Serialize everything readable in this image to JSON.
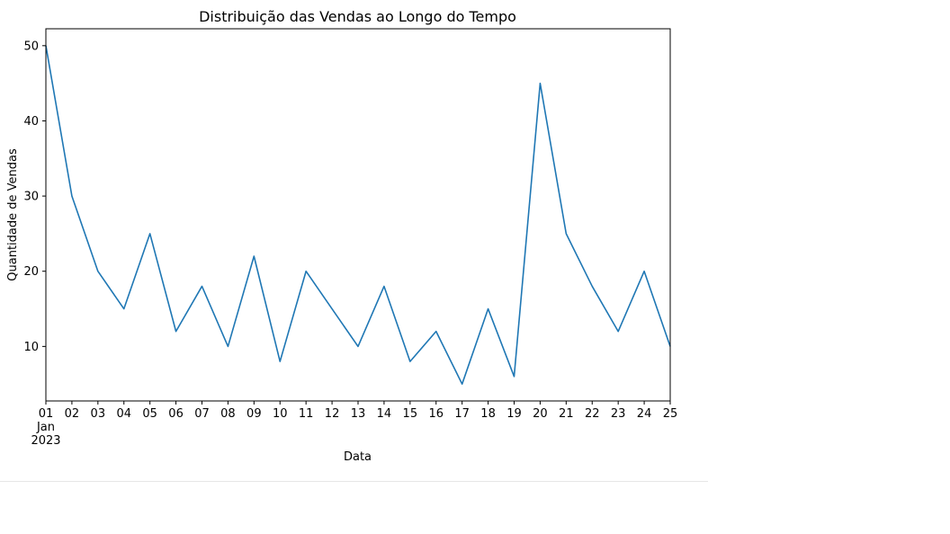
{
  "chart_data": {
    "type": "line",
    "title": "Distribuição das Vendas ao Longo do Tempo",
    "xlabel": "Data",
    "ylabel": "Quantidade de Vendas",
    "x_month_label": "Jan",
    "x_year_label": "2023",
    "x_tick_labels": [
      "01",
      "02",
      "03",
      "04",
      "05",
      "06",
      "07",
      "08",
      "09",
      "10",
      "11",
      "12",
      "13",
      "14",
      "15",
      "16",
      "17",
      "18",
      "19",
      "20",
      "21",
      "22",
      "23",
      "24",
      "25"
    ],
    "x": [
      "2023-01-01",
      "2023-01-02",
      "2023-01-03",
      "2023-01-04",
      "2023-01-05",
      "2023-01-06",
      "2023-01-07",
      "2023-01-08",
      "2023-01-09",
      "2023-01-10",
      "2023-01-11",
      "2023-01-12",
      "2023-01-13",
      "2023-01-14",
      "2023-01-15",
      "2023-01-16",
      "2023-01-17",
      "2023-01-18",
      "2023-01-19",
      "2023-01-20",
      "2023-01-21",
      "2023-01-22",
      "2023-01-23",
      "2023-01-24",
      "2023-01-25"
    ],
    "series": [
      {
        "values": [
          50,
          30,
          20,
          15,
          25,
          12,
          18,
          10,
          22,
          8,
          20,
          15,
          10,
          18,
          8,
          12,
          5,
          15,
          6,
          45,
          25,
          18,
          12,
          20,
          10
        ]
      }
    ],
    "y_ticks": [
      10,
      20,
      30,
      40,
      50
    ],
    "ylim": [
      2.75,
      52.25
    ],
    "line_color": "#1f77b4",
    "grid": false
  }
}
